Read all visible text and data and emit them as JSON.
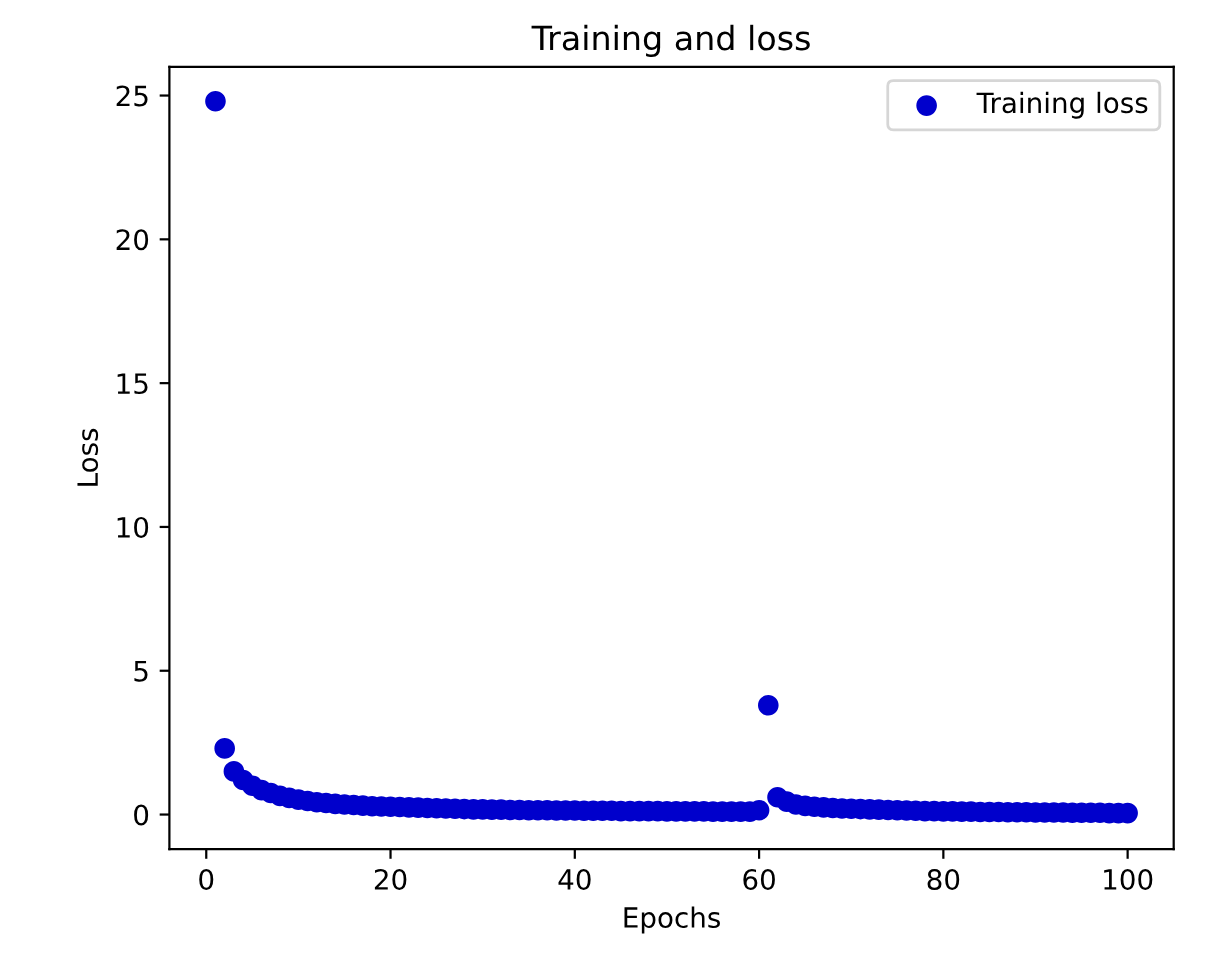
{
  "chart_data": {
    "type": "scatter",
    "title": "Training and loss",
    "xlabel": "Epochs",
    "ylabel": "Loss",
    "x": [
      1,
      2,
      3,
      4,
      5,
      6,
      7,
      8,
      9,
      10,
      11,
      12,
      13,
      14,
      15,
      16,
      17,
      18,
      19,
      20,
      21,
      22,
      23,
      24,
      25,
      26,
      27,
      28,
      29,
      30,
      31,
      32,
      33,
      34,
      35,
      36,
      37,
      38,
      39,
      40,
      41,
      42,
      43,
      44,
      45,
      46,
      47,
      48,
      49,
      50,
      51,
      52,
      53,
      54,
      55,
      56,
      57,
      58,
      59,
      60,
      61,
      62,
      63,
      64,
      65,
      66,
      67,
      68,
      69,
      70,
      71,
      72,
      73,
      74,
      75,
      76,
      77,
      78,
      79,
      80,
      81,
      82,
      83,
      84,
      85,
      86,
      87,
      88,
      89,
      90,
      91,
      92,
      93,
      94,
      95,
      96,
      97,
      98,
      99,
      100
    ],
    "series": [
      {
        "name": "Training loss",
        "color": "#0000cc",
        "values": [
          24.8,
          2.3,
          1.5,
          1.2,
          1.0,
          0.85,
          0.75,
          0.65,
          0.58,
          0.52,
          0.47,
          0.43,
          0.4,
          0.37,
          0.35,
          0.33,
          0.31,
          0.29,
          0.28,
          0.27,
          0.26,
          0.25,
          0.24,
          0.23,
          0.22,
          0.21,
          0.2,
          0.19,
          0.18,
          0.18,
          0.17,
          0.17,
          0.16,
          0.16,
          0.15,
          0.15,
          0.15,
          0.14,
          0.14,
          0.14,
          0.13,
          0.13,
          0.13,
          0.13,
          0.12,
          0.12,
          0.12,
          0.12,
          0.12,
          0.11,
          0.11,
          0.11,
          0.11,
          0.11,
          0.1,
          0.1,
          0.1,
          0.1,
          0.1,
          0.15,
          3.8,
          0.6,
          0.45,
          0.35,
          0.3,
          0.27,
          0.25,
          0.23,
          0.21,
          0.2,
          0.19,
          0.18,
          0.17,
          0.16,
          0.15,
          0.14,
          0.13,
          0.12,
          0.12,
          0.11,
          0.11,
          0.1,
          0.1,
          0.09,
          0.09,
          0.09,
          0.08,
          0.08,
          0.08,
          0.07,
          0.07,
          0.07,
          0.07,
          0.06,
          0.06,
          0.06,
          0.06,
          0.05,
          0.05,
          0.05
        ]
      }
    ],
    "xlim": [
      -4,
      105
    ],
    "ylim": [
      -1.2,
      26
    ],
    "xticks": [
      0,
      20,
      40,
      60,
      80,
      100
    ],
    "yticks": [
      0,
      5,
      10,
      15,
      20,
      25
    ],
    "marker": "circle",
    "legend": "top right",
    "grid": false
  }
}
